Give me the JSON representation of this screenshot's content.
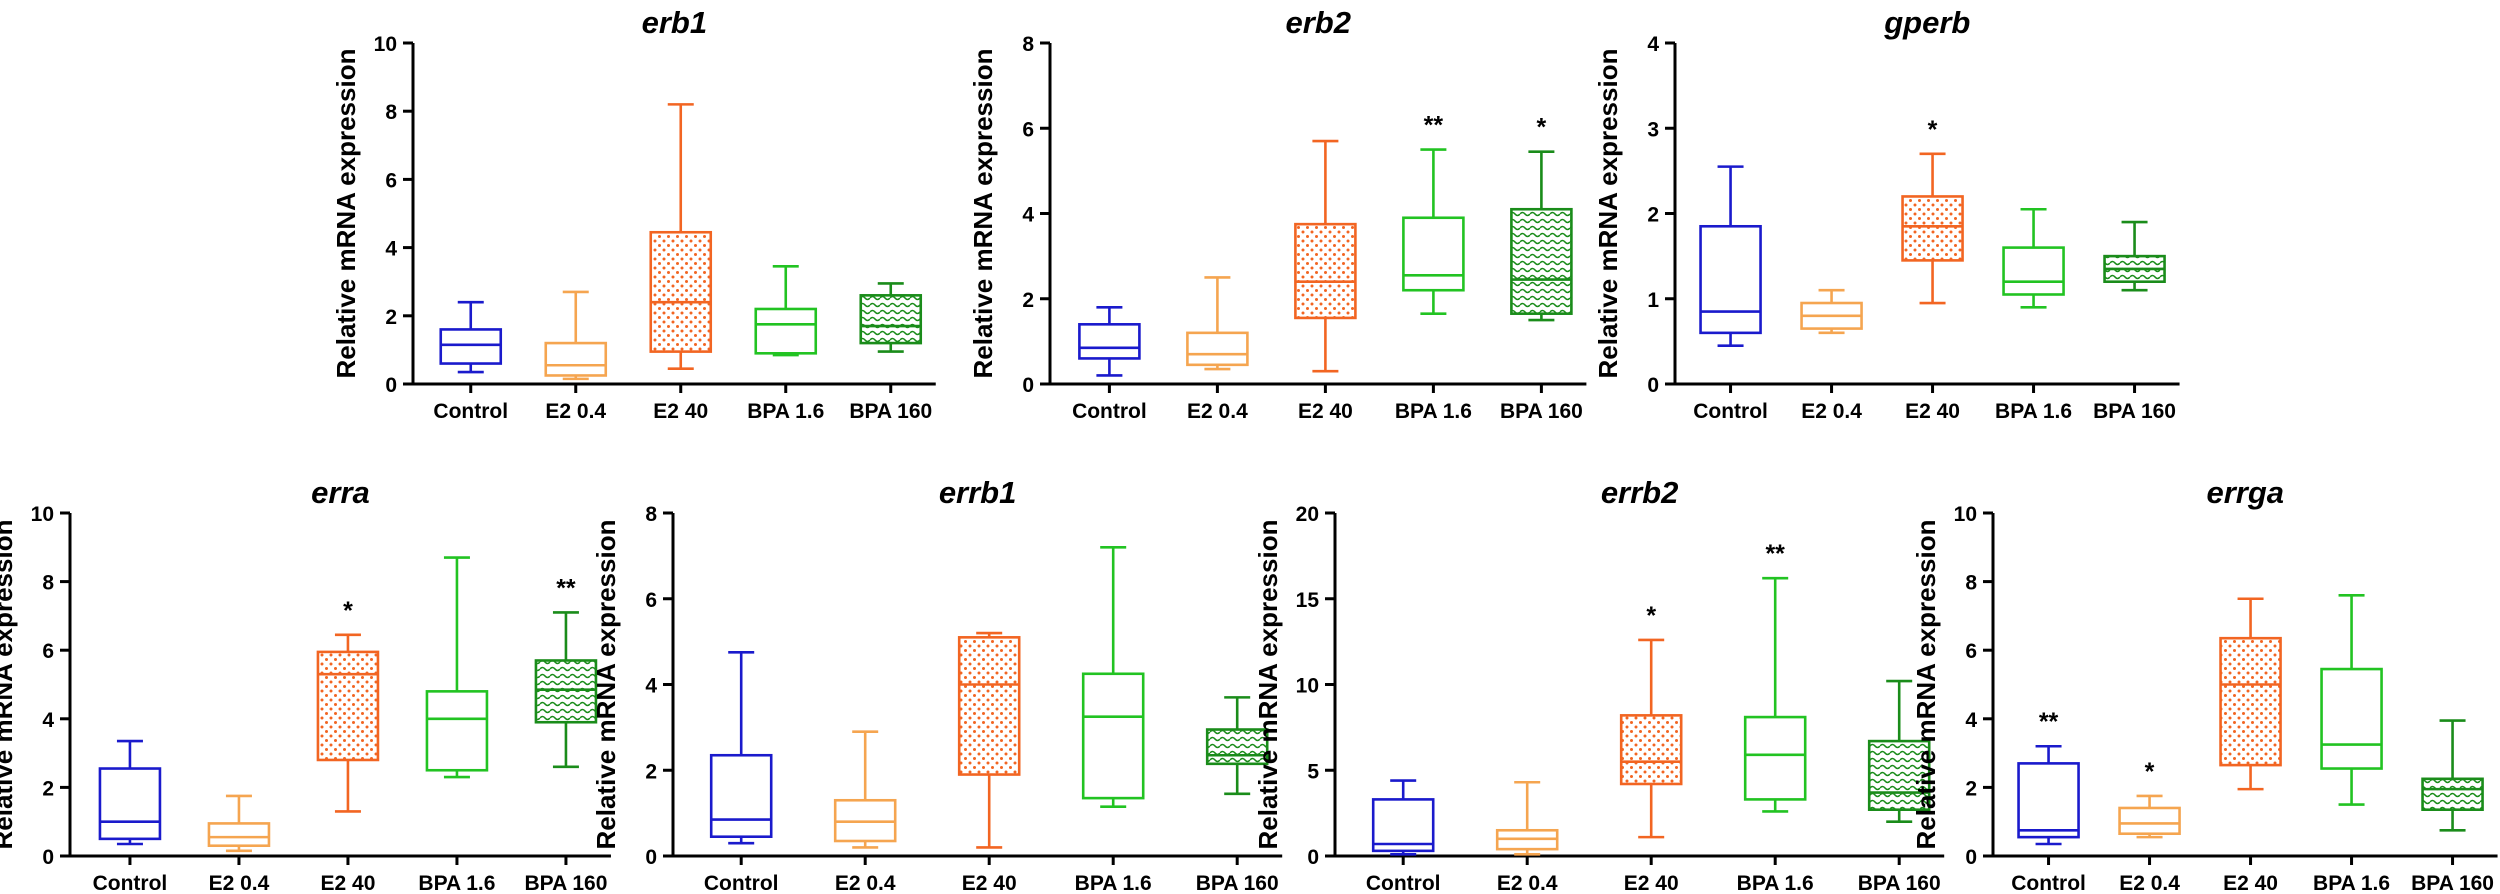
{
  "figure": {
    "patterns": {
      "E2 40": "dots",
      "BPA 160": "waves"
    },
    "group_colors": {
      "Control": "#1a1acc",
      "E2 0.4": "#f5a550",
      "E2 40": "#f26522",
      "BPA 1.6": "#22c322",
      "BPA 160": "#1a8c1a"
    }
  },
  "chart_data": [
    {
      "type": "boxplot",
      "title": "erb1",
      "ylabel": "Relative mRNA expression",
      "xlabel": "",
      "ylim": [
        0,
        10
      ],
      "yticks": [
        0,
        2,
        4,
        6,
        8,
        10
      ],
      "categories": [
        "Control",
        "E2 0.4",
        "E2 40",
        "BPA 1.6",
        "BPA 160"
      ],
      "boxes": [
        {
          "min": 0.35,
          "q1": 0.6,
          "median": 1.15,
          "q3": 1.6,
          "max": 2.4
        },
        {
          "min": 0.15,
          "q1": 0.25,
          "median": 0.55,
          "q3": 1.2,
          "max": 2.7
        },
        {
          "min": 0.45,
          "q1": 0.95,
          "median": 2.4,
          "q3": 4.45,
          "max": 8.2
        },
        {
          "min": 0.85,
          "q1": 0.9,
          "median": 1.75,
          "q3": 2.2,
          "max": 3.45
        },
        {
          "min": 0.95,
          "q1": 1.2,
          "median": 1.7,
          "q3": 2.6,
          "max": 2.95
        }
      ],
      "significance": [
        "",
        "",
        "",
        "",
        ""
      ]
    },
    {
      "type": "boxplot",
      "title": "erb2",
      "ylabel": "Relative mRNA expression",
      "xlabel": "",
      "ylim": [
        0,
        8
      ],
      "yticks": [
        0,
        2,
        4,
        6,
        8
      ],
      "categories": [
        "Control",
        "E2 0.4",
        "E2 40",
        "BPA 1.6",
        "BPA 160"
      ],
      "boxes": [
        {
          "min": 0.2,
          "q1": 0.6,
          "median": 0.85,
          "q3": 1.4,
          "max": 1.8
        },
        {
          "min": 0.35,
          "q1": 0.45,
          "median": 0.7,
          "q3": 1.2,
          "max": 2.5
        },
        {
          "min": 0.3,
          "q1": 1.55,
          "median": 2.4,
          "q3": 3.75,
          "max": 5.7
        },
        {
          "min": 1.65,
          "q1": 2.2,
          "median": 2.55,
          "q3": 3.9,
          "max": 5.5
        },
        {
          "min": 1.5,
          "q1": 1.65,
          "median": 2.45,
          "q3": 4.1,
          "max": 5.45
        }
      ],
      "significance": [
        "",
        "",
        "",
        "**",
        "*"
      ]
    },
    {
      "type": "boxplot",
      "title": "gperb",
      "ylabel": "Relative mRNA expression",
      "xlabel": "",
      "ylim": [
        0,
        4
      ],
      "yticks": [
        0,
        1,
        2,
        3,
        4
      ],
      "categories": [
        "Control",
        "E2 0.4",
        "E2 40",
        "BPA 1.6",
        "BPA 160"
      ],
      "boxes": [
        {
          "min": 0.45,
          "q1": 0.6,
          "median": 0.85,
          "q3": 1.85,
          "max": 2.55
        },
        {
          "min": 0.6,
          "q1": 0.65,
          "median": 0.8,
          "q3": 0.95,
          "max": 1.1
        },
        {
          "min": 0.95,
          "q1": 1.45,
          "median": 1.85,
          "q3": 2.2,
          "max": 2.7
        },
        {
          "min": 0.9,
          "q1": 1.05,
          "median": 1.2,
          "q3": 1.6,
          "max": 2.05
        },
        {
          "min": 1.1,
          "q1": 1.2,
          "median": 1.35,
          "q3": 1.5,
          "max": 1.9
        }
      ],
      "significance": [
        "",
        "",
        "*",
        "",
        ""
      ]
    },
    {
      "type": "boxplot",
      "title": "erra",
      "ylabel": "Relative mRNA expression",
      "xlabel": "",
      "ylim": [
        0,
        10
      ],
      "yticks": [
        0,
        2,
        4,
        6,
        8,
        10
      ],
      "categories": [
        "Control",
        "E2 0.4",
        "E2 40",
        "BPA 1.6",
        "BPA 160"
      ],
      "boxes": [
        {
          "min": 0.35,
          "q1": 0.5,
          "median": 1.0,
          "q3": 2.55,
          "max": 3.35
        },
        {
          "min": 0.15,
          "q1": 0.3,
          "median": 0.55,
          "q3": 0.95,
          "max": 1.75
        },
        {
          "min": 1.3,
          "q1": 2.8,
          "median": 5.3,
          "q3": 5.95,
          "max": 6.45
        },
        {
          "min": 2.3,
          "q1": 2.5,
          "median": 4.0,
          "q3": 4.8,
          "max": 8.7
        },
        {
          "min": 2.6,
          "q1": 3.9,
          "median": 4.85,
          "q3": 5.7,
          "max": 7.1
        }
      ],
      "significance": [
        "",
        "",
        "*",
        "",
        "**"
      ]
    },
    {
      "type": "boxplot",
      "title": "errb1",
      "ylabel": "Relative mRNA expression",
      "xlabel": "",
      "ylim": [
        0,
        8
      ],
      "yticks": [
        0,
        2,
        4,
        6,
        8
      ],
      "categories": [
        "Control",
        "E2 0.4",
        "E2 40",
        "BPA 1.6",
        "BPA 160"
      ],
      "boxes": [
        {
          "min": 0.3,
          "q1": 0.45,
          "median": 0.85,
          "q3": 2.35,
          "max": 4.75
        },
        {
          "min": 0.2,
          "q1": 0.35,
          "median": 0.8,
          "q3": 1.3,
          "max": 2.9
        },
        {
          "min": 0.2,
          "q1": 1.9,
          "median": 4.0,
          "q3": 5.1,
          "max": 5.2
        },
        {
          "min": 1.15,
          "q1": 1.35,
          "median": 3.25,
          "q3": 4.25,
          "max": 7.2
        },
        {
          "min": 1.45,
          "q1": 2.15,
          "median": 2.35,
          "q3": 2.95,
          "max": 3.7
        }
      ],
      "significance": [
        "",
        "",
        "",
        "",
        ""
      ]
    },
    {
      "type": "boxplot",
      "title": "errb2",
      "ylabel": "Relative mRNA expression",
      "xlabel": "",
      "ylim": [
        0,
        20
      ],
      "yticks": [
        0,
        5,
        10,
        15,
        20
      ],
      "categories": [
        "Control",
        "E2 0.4",
        "E2 40",
        "BPA 1.6",
        "BPA 160"
      ],
      "boxes": [
        {
          "min": 0.1,
          "q1": 0.3,
          "median": 0.7,
          "q3": 3.3,
          "max": 4.4
        },
        {
          "min": 0.1,
          "q1": 0.4,
          "median": 1.0,
          "q3": 1.5,
          "max": 4.3
        },
        {
          "min": 1.1,
          "q1": 4.2,
          "median": 5.5,
          "q3": 8.2,
          "max": 12.6
        },
        {
          "min": 2.6,
          "q1": 3.3,
          "median": 5.9,
          "q3": 8.1,
          "max": 16.2
        },
        {
          "min": 2.0,
          "q1": 2.7,
          "median": 3.7,
          "q3": 6.7,
          "max": 10.2
        }
      ],
      "significance": [
        "",
        "",
        "*",
        "**",
        ""
      ]
    },
    {
      "type": "boxplot",
      "title": "errga",
      "ylabel": "Relative mRNA expression",
      "xlabel": "",
      "ylim": [
        0,
        10
      ],
      "yticks": [
        0,
        2,
        4,
        6,
        8,
        10
      ],
      "categories": [
        "Control",
        "E2 0.4",
        "E2 40",
        "BPA 1.6",
        "BPA 160"
      ],
      "boxes": [
        {
          "min": 0.35,
          "q1": 0.55,
          "median": 0.75,
          "q3": 2.7,
          "max": 3.2
        },
        {
          "min": 0.55,
          "q1": 0.65,
          "median": 0.95,
          "q3": 1.4,
          "max": 1.75
        },
        {
          "min": 1.95,
          "q1": 2.65,
          "median": 5.0,
          "q3": 6.35,
          "max": 7.5
        },
        {
          "min": 1.5,
          "q1": 2.55,
          "median": 3.25,
          "q3": 5.45,
          "max": 7.6
        },
        {
          "min": 0.75,
          "q1": 1.35,
          "median": 1.95,
          "q3": 2.25,
          "max": 3.95
        }
      ],
      "significance": [
        "**",
        "*",
        "",
        "",
        ""
      ]
    }
  ]
}
